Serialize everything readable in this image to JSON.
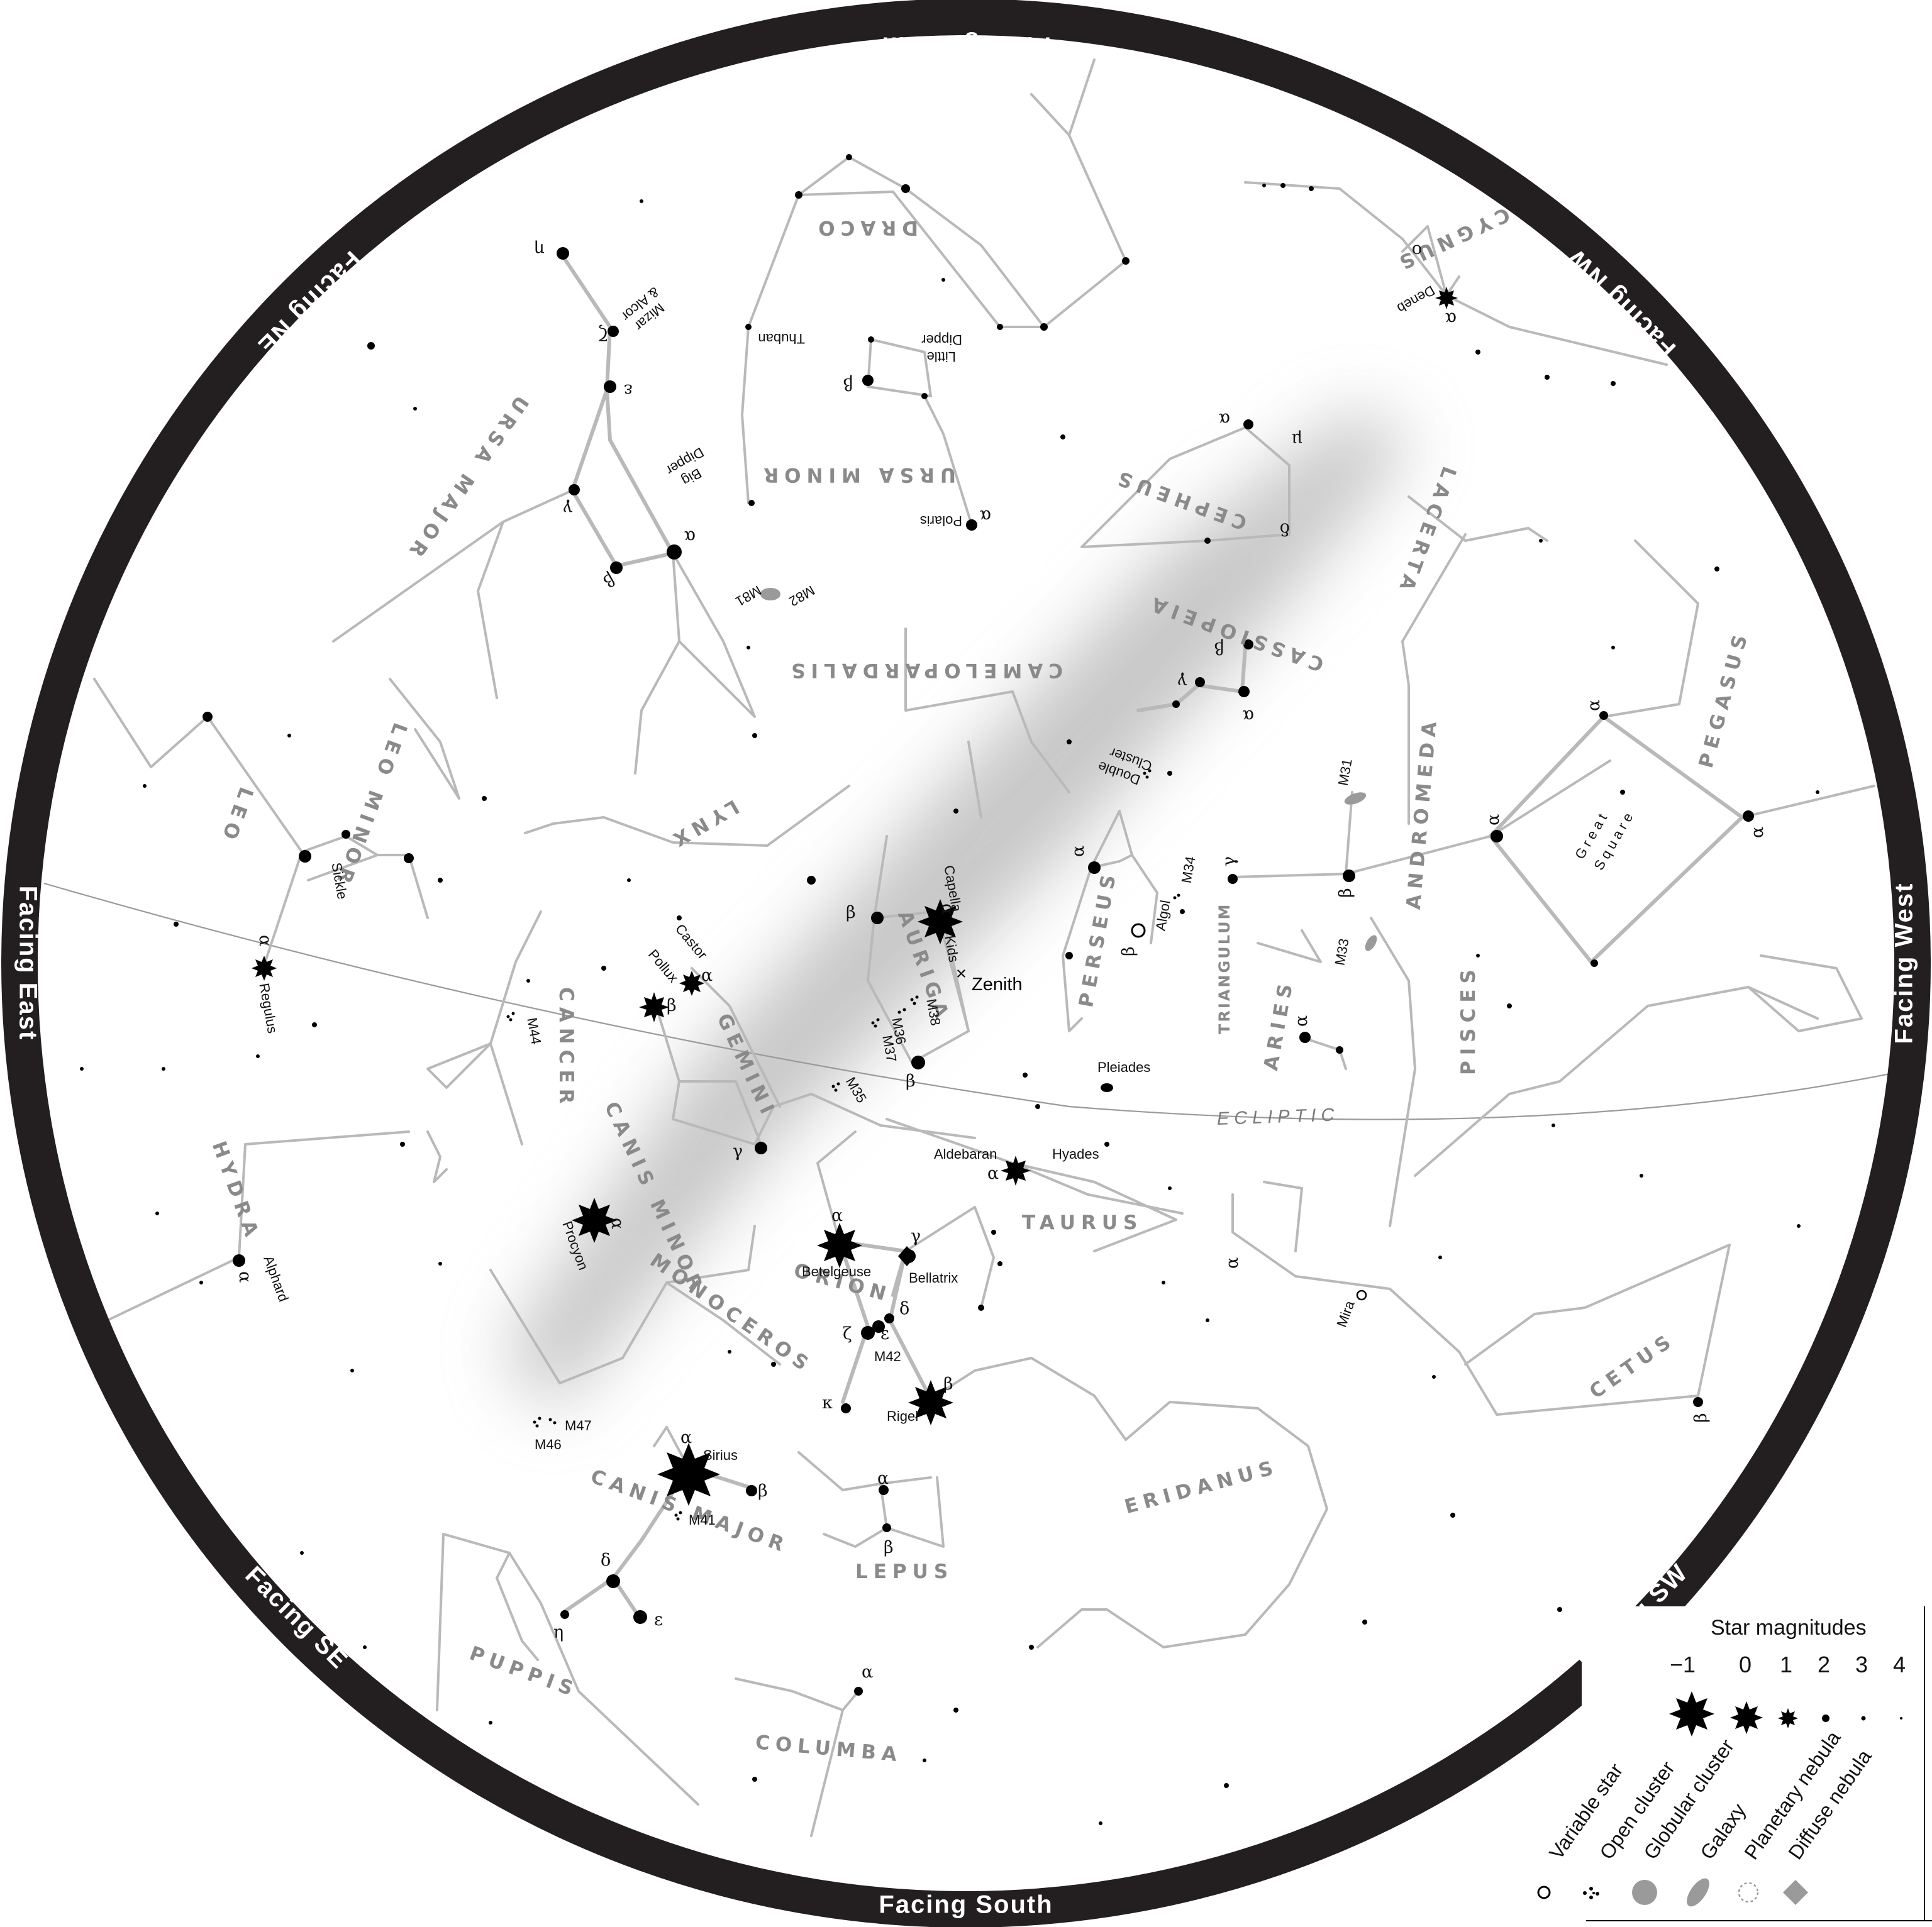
{
  "directions": {
    "north": "Facing North",
    "ne": "Facing NE",
    "east": "Facing East",
    "se": "Facing SE",
    "south": "Facing South",
    "sw": "Facing SW",
    "west": "Facing West",
    "nw": "Facing NW"
  },
  "constellations": {
    "draco": "DRACO",
    "cygnus": "CYGNUS",
    "ursa_major": "URSA MAJOR",
    "ursa_minor": "URSA MINOR",
    "cepheus": "CEPHEUS",
    "lacerta": "LACERTA",
    "cassiopeia": "CASSIOPEIA",
    "camelopardalis": "CAMELOPARDALIS",
    "leo_minor": "LEO MINOR",
    "leo": "LEO",
    "lynx": "LYNX",
    "pegasus": "PEGASUS",
    "andromeda": "ANDROMEDA",
    "perseus": "PERSEUS",
    "auriga": "AURIGA",
    "triangulum": "TRIANGULUM",
    "aries": "ARIES",
    "pisces": "PISCES",
    "cancer": "CANCER",
    "gemini": "GEMINI",
    "canis_minor": "CANIS MINOR",
    "hydra": "HYDRA",
    "taurus": "TAURUS",
    "orion": "ORION",
    "monoceros": "MONOCEROS",
    "cetus": "CETUS",
    "eridanus": "ERIDANUS",
    "canis_major": "CANIS MAJOR",
    "lepus": "LEPUS",
    "puppis": "PUPPIS",
    "columba": "COLUMBA"
  },
  "labels": {
    "zenith": "Zenith",
    "ecliptic": "ECLIPTIC",
    "big_dipper": [
      "Big",
      "Dipper"
    ],
    "little_dipper": [
      "Little",
      "Dipper"
    ],
    "mizar_alcor": [
      "Mizar",
      "& Alcor"
    ],
    "thuban": "Thuban",
    "polaris": "Polaris",
    "m81": "M81",
    "m82": "M82",
    "deneb": "Deneb",
    "double_cluster": [
      "Double",
      "Cluster"
    ],
    "m31": "M31",
    "m33": "M33",
    "m34": "M34",
    "algol": "Algol",
    "great_square": [
      "Great",
      "Square"
    ],
    "capella": "Capella",
    "kids": "Kids",
    "castor": "Castor",
    "pollux": "Pollux",
    "m44": "M44",
    "m38": "M38",
    "m36": "M36",
    "m37": "M37",
    "m35": "M35",
    "regulus": "Regulus",
    "sickle": "Sickle",
    "pleiades": "Pleiades",
    "aldebaran": "Aldebaran",
    "hyades": "Hyades",
    "procyon": "Procyon",
    "alphard": "Alphard",
    "betelgeuse": "Betelgeuse",
    "bellatrix": "Bellatrix",
    "m42": "M42",
    "rigel": "Rigel",
    "mira": "Mira",
    "m47": "M47",
    "m46": "M46",
    "sirius": "Sirius",
    "m41": "M41"
  },
  "greek": {
    "alpha": "α",
    "beta": "β",
    "gamma": "γ",
    "delta": "δ",
    "epsilon": "ε",
    "zeta": "ζ",
    "eta": "η",
    "kappa": "κ",
    "mu": "μ",
    "omicron": "ο"
  },
  "legend": {
    "title": "Star magnitudes",
    "magnitudes": [
      "−1",
      "0",
      "1",
      "2",
      "3",
      "4"
    ],
    "objects": [
      "Variable star",
      "Open cluster",
      "Globular cluster",
      "Galaxy",
      "Planetary nebula",
      "Diffuse nebula"
    ]
  }
}
